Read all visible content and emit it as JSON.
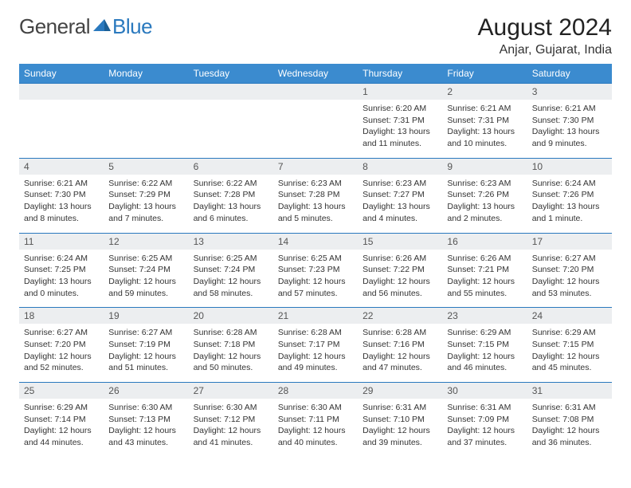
{
  "logo": {
    "word1": "General",
    "word2": "Blue"
  },
  "title": "August 2024",
  "location": "Anjar, Gujarat, India",
  "colors": {
    "header_bar": "#3b8bcf",
    "daynum_bg": "#eceef0",
    "row_border": "#2a79be",
    "logo_blue": "#2a79be",
    "text_dark": "#222"
  },
  "day_headers": [
    "Sunday",
    "Monday",
    "Tuesday",
    "Wednesday",
    "Thursday",
    "Friday",
    "Saturday"
  ],
  "weeks": [
    {
      "nums": [
        "",
        "",
        "",
        "",
        "1",
        "2",
        "3"
      ],
      "cells": [
        null,
        null,
        null,
        null,
        {
          "sunrise": "6:20 AM",
          "sunset": "7:31 PM",
          "daylight": "13 hours and 11 minutes."
        },
        {
          "sunrise": "6:21 AM",
          "sunset": "7:31 PM",
          "daylight": "13 hours and 10 minutes."
        },
        {
          "sunrise": "6:21 AM",
          "sunset": "7:30 PM",
          "daylight": "13 hours and 9 minutes."
        }
      ]
    },
    {
      "nums": [
        "4",
        "5",
        "6",
        "7",
        "8",
        "9",
        "10"
      ],
      "cells": [
        {
          "sunrise": "6:21 AM",
          "sunset": "7:30 PM",
          "daylight": "13 hours and 8 minutes."
        },
        {
          "sunrise": "6:22 AM",
          "sunset": "7:29 PM",
          "daylight": "13 hours and 7 minutes."
        },
        {
          "sunrise": "6:22 AM",
          "sunset": "7:28 PM",
          "daylight": "13 hours and 6 minutes."
        },
        {
          "sunrise": "6:23 AM",
          "sunset": "7:28 PM",
          "daylight": "13 hours and 5 minutes."
        },
        {
          "sunrise": "6:23 AM",
          "sunset": "7:27 PM",
          "daylight": "13 hours and 4 minutes."
        },
        {
          "sunrise": "6:23 AM",
          "sunset": "7:26 PM",
          "daylight": "13 hours and 2 minutes."
        },
        {
          "sunrise": "6:24 AM",
          "sunset": "7:26 PM",
          "daylight": "13 hours and 1 minute."
        }
      ]
    },
    {
      "nums": [
        "11",
        "12",
        "13",
        "14",
        "15",
        "16",
        "17"
      ],
      "cells": [
        {
          "sunrise": "6:24 AM",
          "sunset": "7:25 PM",
          "daylight": "13 hours and 0 minutes."
        },
        {
          "sunrise": "6:25 AM",
          "sunset": "7:24 PM",
          "daylight": "12 hours and 59 minutes."
        },
        {
          "sunrise": "6:25 AM",
          "sunset": "7:24 PM",
          "daylight": "12 hours and 58 minutes."
        },
        {
          "sunrise": "6:25 AM",
          "sunset": "7:23 PM",
          "daylight": "12 hours and 57 minutes."
        },
        {
          "sunrise": "6:26 AM",
          "sunset": "7:22 PM",
          "daylight": "12 hours and 56 minutes."
        },
        {
          "sunrise": "6:26 AM",
          "sunset": "7:21 PM",
          "daylight": "12 hours and 55 minutes."
        },
        {
          "sunrise": "6:27 AM",
          "sunset": "7:20 PM",
          "daylight": "12 hours and 53 minutes."
        }
      ]
    },
    {
      "nums": [
        "18",
        "19",
        "20",
        "21",
        "22",
        "23",
        "24"
      ],
      "cells": [
        {
          "sunrise": "6:27 AM",
          "sunset": "7:20 PM",
          "daylight": "12 hours and 52 minutes."
        },
        {
          "sunrise": "6:27 AM",
          "sunset": "7:19 PM",
          "daylight": "12 hours and 51 minutes."
        },
        {
          "sunrise": "6:28 AM",
          "sunset": "7:18 PM",
          "daylight": "12 hours and 50 minutes."
        },
        {
          "sunrise": "6:28 AM",
          "sunset": "7:17 PM",
          "daylight": "12 hours and 49 minutes."
        },
        {
          "sunrise": "6:28 AM",
          "sunset": "7:16 PM",
          "daylight": "12 hours and 47 minutes."
        },
        {
          "sunrise": "6:29 AM",
          "sunset": "7:15 PM",
          "daylight": "12 hours and 46 minutes."
        },
        {
          "sunrise": "6:29 AM",
          "sunset": "7:15 PM",
          "daylight": "12 hours and 45 minutes."
        }
      ]
    },
    {
      "nums": [
        "25",
        "26",
        "27",
        "28",
        "29",
        "30",
        "31"
      ],
      "cells": [
        {
          "sunrise": "6:29 AM",
          "sunset": "7:14 PM",
          "daylight": "12 hours and 44 minutes."
        },
        {
          "sunrise": "6:30 AM",
          "sunset": "7:13 PM",
          "daylight": "12 hours and 43 minutes."
        },
        {
          "sunrise": "6:30 AM",
          "sunset": "7:12 PM",
          "daylight": "12 hours and 41 minutes."
        },
        {
          "sunrise": "6:30 AM",
          "sunset": "7:11 PM",
          "daylight": "12 hours and 40 minutes."
        },
        {
          "sunrise": "6:31 AM",
          "sunset": "7:10 PM",
          "daylight": "12 hours and 39 minutes."
        },
        {
          "sunrise": "6:31 AM",
          "sunset": "7:09 PM",
          "daylight": "12 hours and 37 minutes."
        },
        {
          "sunrise": "6:31 AM",
          "sunset": "7:08 PM",
          "daylight": "12 hours and 36 minutes."
        }
      ]
    }
  ],
  "labels": {
    "sunrise": "Sunrise:",
    "sunset": "Sunset:",
    "daylight": "Daylight:"
  }
}
